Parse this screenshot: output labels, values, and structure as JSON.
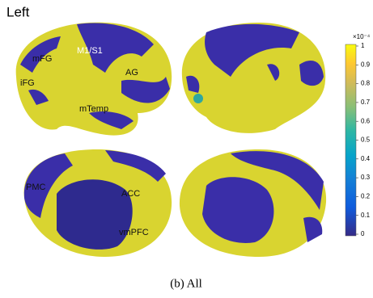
{
  "panel_title": "Left",
  "regions": [
    "mFG",
    "M1/S1",
    "AG",
    "iFG",
    "mTemp",
    "PMC",
    "ACC",
    "vmPFC"
  ],
  "colorbar": {
    "multiplier_label": "×10⁻⁴",
    "ticks": [
      0,
      0.1,
      0.2,
      0.3,
      0.4,
      0.5,
      0.6,
      0.7,
      0.8,
      0.9,
      1
    ],
    "lim": [
      0,
      1
    ]
  },
  "caption": "(b) All"
}
